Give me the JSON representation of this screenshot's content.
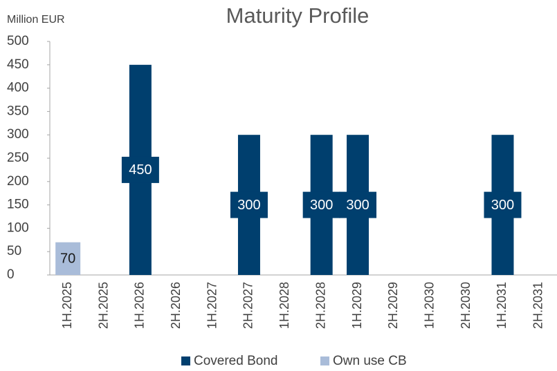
{
  "chart_data": {
    "type": "bar",
    "stacked": true,
    "title": "Maturity Profile",
    "y_axis_label": "Million EUR",
    "categories": [
      "1H.2025",
      "2H.2025",
      "1H.2026",
      "2H.2026",
      "1H.2027",
      "2H.2027",
      "1H.2028",
      "2H.2028",
      "1H.2029",
      "2H.2029",
      "1H.2030",
      "2H.2030",
      "1H.2031",
      "2H.2031"
    ],
    "series": [
      {
        "name": "Covered Bond",
        "color": "#003f6e",
        "label_color": "#ffffff",
        "values": [
          null,
          null,
          450,
          null,
          null,
          300,
          null,
          300,
          300,
          null,
          null,
          null,
          300,
          null
        ]
      },
      {
        "name": "Own use CB",
        "color": "#a9bcd9",
        "label_color": "#1a1a1a",
        "values": [
          70,
          null,
          null,
          null,
          null,
          null,
          null,
          null,
          null,
          null,
          null,
          null,
          null,
          null
        ]
      }
    ],
    "ylim": [
      0,
      500
    ],
    "yticks": [
      0,
      50,
      100,
      150,
      200,
      250,
      300,
      350,
      400,
      450,
      500
    ],
    "grid": false,
    "legend": "bottom"
  }
}
